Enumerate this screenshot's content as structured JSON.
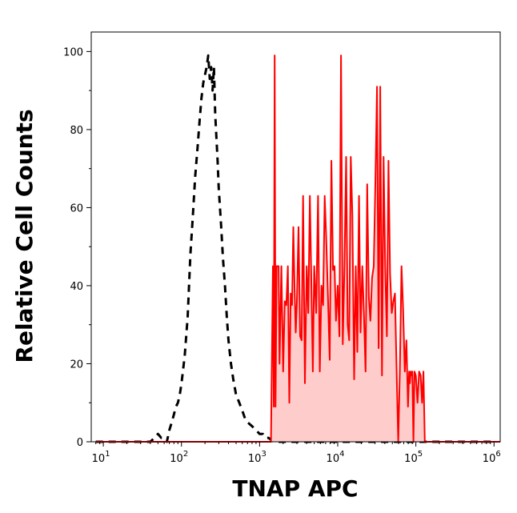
{
  "chart_data": {
    "type": "area",
    "title": "",
    "xlabel": "TNAP APC",
    "ylabel": "Relative Cell Counts",
    "x_scale": "log",
    "xlim": [
      7,
      1200000
    ],
    "ylim": [
      0,
      105
    ],
    "grid": false,
    "yticks": [
      0,
      20,
      40,
      60,
      80,
      100
    ],
    "xticks": [
      {
        "base": "10",
        "exp": "1",
        "value": 10
      },
      {
        "base": "10",
        "exp": "2",
        "value": 100
      },
      {
        "base": "10",
        "exp": "3",
        "value": 1000
      },
      {
        "base": "10",
        "exp": "4",
        "value": 10000
      },
      {
        "base": "10",
        "exp": "5",
        "value": 100000
      },
      {
        "base": "10",
        "exp": "6",
        "value": 1000000
      }
    ],
    "series": [
      {
        "style": "dashed",
        "color": "#000000",
        "fill": "none",
        "x": [
          8,
          40,
          45,
          50,
          55,
          60,
          65,
          70,
          75,
          80,
          85,
          90,
          95,
          100,
          110,
          120,
          130,
          140,
          150,
          160,
          170,
          180,
          190,
          200,
          210,
          220,
          230,
          240,
          250,
          260,
          270,
          280,
          290,
          300,
          320,
          340,
          360,
          380,
          400,
          430,
          460,
          500,
          550,
          600,
          650,
          700,
          800,
          900,
          1000,
          1100,
          1200,
          1300,
          1500,
          2000,
          5000,
          20000,
          100000,
          1000000
        ],
        "y": [
          0,
          0,
          1,
          2,
          1,
          1,
          0,
          3,
          5,
          7,
          9,
          10,
          12,
          15,
          22,
          32,
          48,
          58,
          68,
          75,
          82,
          88,
          92,
          94,
          96,
          99,
          93,
          96,
          90,
          96,
          84,
          78,
          72,
          65,
          56,
          47,
          40,
          32,
          26,
          20,
          16,
          12,
          10,
          8,
          6,
          5,
          4,
          3,
          2,
          2,
          1,
          1,
          0,
          0,
          0,
          0,
          0,
          0
        ]
      },
      {
        "style": "solid",
        "color": "#ff0000",
        "fill": "#ffcccc",
        "x": [
          8,
          1200,
          1350,
          1400,
          1480,
          1520,
          1560,
          1600,
          1650,
          1700,
          1750,
          1800,
          1900,
          2000,
          2100,
          2200,
          2300,
          2400,
          2500,
          2600,
          2700,
          2800,
          2900,
          3000,
          3150,
          3300,
          3450,
          3600,
          3800,
          4000,
          4200,
          4400,
          4600,
          4800,
          5000,
          5300,
          5600,
          5900,
          6200,
          6500,
          6800,
          7100,
          7500,
          7900,
          8300,
          8700,
          9100,
          9500,
          10000,
          10500,
          11000,
          11600,
          12200,
          12800,
          13400,
          14000,
          14700,
          15400,
          16200,
          17000,
          17800,
          18700,
          19600,
          20600,
          21600,
          22700,
          23800,
          25000,
          26200,
          27500,
          28900,
          30300,
          31800,
          33400,
          35000,
          36800,
          38600,
          40500,
          42500,
          44600,
          46800,
          49100,
          51500,
          54000,
          56700,
          59500,
          62400,
          65500,
          68700,
          72100,
          75600,
          79300,
          82000,
          84000,
          86000,
          88000,
          90000,
          93000,
          96000,
          100000,
          105000,
          110000,
          115000,
          120000,
          125000,
          130000,
          135000,
          140000,
          145000,
          150000,
          160000,
          1200000
        ],
        "y": [
          0,
          0,
          0,
          0,
          45,
          9,
          99,
          9,
          45,
          45,
          45,
          20,
          45,
          18,
          36,
          35,
          45,
          10,
          38,
          35,
          55,
          40,
          28,
          36,
          55,
          27,
          26,
          63,
          15,
          45,
          33,
          63,
          40,
          18,
          45,
          33,
          63,
          18,
          40,
          35,
          63,
          53,
          37,
          21,
          72,
          44,
          45,
          31,
          40,
          27,
          99,
          25,
          45,
          73,
          30,
          26,
          73,
          58,
          16,
          45,
          23,
          63,
          28,
          45,
          33,
          18,
          66,
          37,
          31,
          42,
          45,
          66,
          91,
          24,
          91,
          17,
          73,
          45,
          27,
          72,
          43,
          33,
          36,
          38,
          18,
          0,
          18,
          45,
          34,
          18,
          26,
          9,
          18,
          15,
          18,
          17,
          18,
          0,
          18,
          17,
          10,
          18,
          17,
          10,
          18,
          0,
          0,
          0,
          0,
          0,
          0,
          0
        ]
      }
    ]
  }
}
